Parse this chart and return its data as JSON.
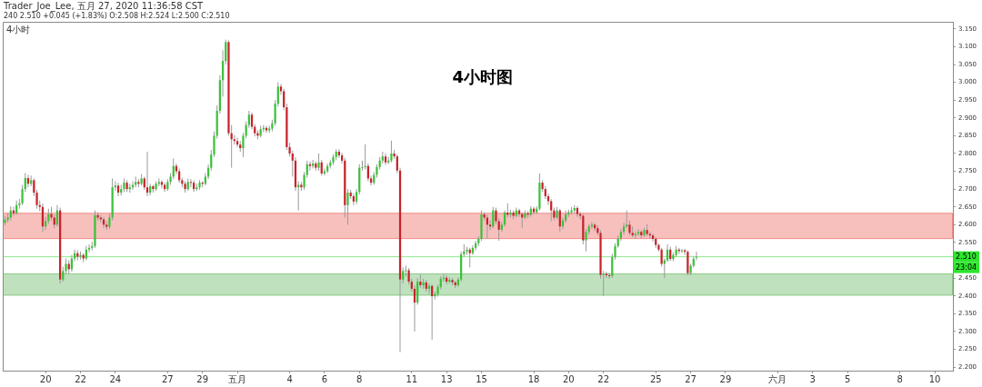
{
  "chart_data": {
    "type": "candlestick",
    "title": "4小时图",
    "annotations": [
      "Trader_Joe_Lee, 五月 27, 2020 11:36:58 CST",
      "240 2.510 +0.045 (+1.83%) O:2.508 H:2.524 L:2.500 C:2.510",
      "4小时",
      "23:04"
    ],
    "xlim": [
      "2020-04-17T13:00",
      "2020-06-11T01:00"
    ],
    "xticks": [
      {
        "value": "2020-04-20",
        "label": "20"
      },
      {
        "value": "2020-04-22",
        "label": "22"
      },
      {
        "value": "2020-04-24",
        "label": "24"
      },
      {
        "value": "2020-04-27",
        "label": "27"
      },
      {
        "value": "2020-04-29",
        "label": "29"
      },
      {
        "value": "2020-05-01",
        "label": "五月"
      },
      {
        "value": "2020-05-04",
        "label": "4"
      },
      {
        "value": "2020-05-06",
        "label": "6"
      },
      {
        "value": "2020-05-08",
        "label": "8"
      },
      {
        "value": "2020-05-11",
        "label": "11"
      },
      {
        "value": "2020-05-13",
        "label": "13"
      },
      {
        "value": "2020-05-15",
        "label": "15"
      },
      {
        "value": "2020-05-18",
        "label": "18"
      },
      {
        "value": "2020-05-20",
        "label": "20"
      },
      {
        "value": "2020-05-22",
        "label": "22"
      },
      {
        "value": "2020-05-25",
        "label": "25"
      },
      {
        "value": "2020-05-27",
        "label": "27"
      },
      {
        "value": "2020-05-29",
        "label": "29"
      },
      {
        "value": "2020-06-01",
        "label": "六月"
      },
      {
        "value": "2020-06-03",
        "label": "3"
      },
      {
        "value": "2020-06-05",
        "label": "5"
      },
      {
        "value": "2020-06-08",
        "label": "8"
      },
      {
        "value": "2020-06-10",
        "label": "10"
      }
    ],
    "ylim": [
      2.19,
      3.17
    ],
    "yticks": [
      {
        "value": 2.2,
        "label": "2.200"
      },
      {
        "value": 2.25,
        "label": "2.250"
      },
      {
        "value": 2.3,
        "label": "2.300"
      },
      {
        "value": 2.35,
        "label": "2.350"
      },
      {
        "value": 2.4,
        "label": "2.400"
      },
      {
        "value": 2.45,
        "label": "2.450"
      },
      {
        "value": 2.55,
        "label": "2.550"
      },
      {
        "value": 2.6,
        "label": "2.600"
      },
      {
        "value": 2.65,
        "label": "2.650"
      },
      {
        "value": 2.7,
        "label": "2.700"
      },
      {
        "value": 2.75,
        "label": "2.750"
      },
      {
        "value": 2.8,
        "label": "2.800"
      },
      {
        "value": 2.85,
        "label": "2.850"
      },
      {
        "value": 2.9,
        "label": "2.900"
      },
      {
        "value": 2.95,
        "label": "2.950"
      },
      {
        "value": 3.0,
        "label": "3.000"
      },
      {
        "value": 3.05,
        "label": "3.050"
      },
      {
        "value": 3.1,
        "label": "3.100"
      },
      {
        "value": 3.15,
        "label": "3.150"
      }
    ],
    "ref_lines": [
      {
        "axis": "y",
        "value": 2.51,
        "label": "2.510",
        "color": "#8de88d"
      }
    ],
    "bands": [
      {
        "axis": "y",
        "from": 2.561,
        "to": 2.632,
        "color": "#f08c86"
      },
      {
        "axis": "y",
        "from": 2.402,
        "to": 2.462,
        "color": "#8cc987"
      }
    ],
    "series": [
      {
        "x": [
          "2020-04-17T16:00",
          "2020-04-17T20:00",
          "2020-04-18T00:00",
          "2020-04-18T04:00",
          "2020-04-18T08:00",
          "2020-04-18T12:00",
          "2020-04-18T16:00",
          "2020-04-18T20:00",
          "2020-04-19T00:00",
          "2020-04-19T04:00",
          "2020-04-19T08:00",
          "2020-04-19T12:00",
          "2020-04-19T16:00",
          "2020-04-19T20:00",
          "2020-04-20T00:00",
          "2020-04-20T04:00",
          "2020-04-20T08:00",
          "2020-04-20T12:00",
          "2020-04-20T16:00",
          "2020-04-20T20:00",
          "2020-04-21T00:00",
          "2020-04-21T04:00",
          "2020-04-21T08:00",
          "2020-04-21T12:00",
          "2020-04-21T16:00",
          "2020-04-21T20:00",
          "2020-04-22T00:00",
          "2020-04-22T04:00",
          "2020-04-22T08:00",
          "2020-04-22T12:00",
          "2020-04-22T16:00",
          "2020-04-22T20:00",
          "2020-04-23T00:00",
          "2020-04-23T04:00",
          "2020-04-23T08:00",
          "2020-04-23T12:00",
          "2020-04-23T16:00",
          "2020-04-23T20:00",
          "2020-04-24T00:00",
          "2020-04-24T04:00",
          "2020-04-24T08:00",
          "2020-04-24T12:00",
          "2020-04-24T16:00",
          "2020-04-24T20:00",
          "2020-04-25T00:00",
          "2020-04-25T04:00",
          "2020-04-25T08:00",
          "2020-04-25T12:00",
          "2020-04-25T16:00",
          "2020-04-25T20:00",
          "2020-04-26T00:00",
          "2020-04-26T04:00",
          "2020-04-26T08:00",
          "2020-04-26T12:00",
          "2020-04-26T16:00",
          "2020-04-26T20:00",
          "2020-04-27T00:00",
          "2020-04-27T04:00",
          "2020-04-27T08:00",
          "2020-04-27T12:00",
          "2020-04-27T16:00",
          "2020-04-27T20:00",
          "2020-04-28T00:00",
          "2020-04-28T04:00",
          "2020-04-28T08:00",
          "2020-04-28T12:00",
          "2020-04-28T16:00",
          "2020-04-28T20:00",
          "2020-04-29T00:00",
          "2020-04-29T04:00",
          "2020-04-29T08:00",
          "2020-04-29T12:00",
          "2020-04-29T16:00",
          "2020-04-29T20:00",
          "2020-04-30T00:00",
          "2020-04-30T04:00",
          "2020-04-30T08:00",
          "2020-04-30T12:00",
          "2020-04-30T16:00",
          "2020-04-30T20:00",
          "2020-05-01T00:00",
          "2020-05-01T04:00",
          "2020-05-01T08:00",
          "2020-05-01T12:00",
          "2020-05-01T16:00",
          "2020-05-01T20:00",
          "2020-05-02T00:00",
          "2020-05-02T04:00",
          "2020-05-02T08:00",
          "2020-05-02T12:00",
          "2020-05-02T16:00",
          "2020-05-02T20:00",
          "2020-05-03T00:00",
          "2020-05-03T04:00",
          "2020-05-03T08:00",
          "2020-05-03T12:00",
          "2020-05-03T16:00",
          "2020-05-03T20:00",
          "2020-05-04T00:00",
          "2020-05-04T04:00",
          "2020-05-04T08:00",
          "2020-05-04T12:00",
          "2020-05-04T16:00",
          "2020-05-04T20:00",
          "2020-05-05T00:00",
          "2020-05-05T04:00",
          "2020-05-05T08:00",
          "2020-05-05T12:00",
          "2020-05-05T16:00",
          "2020-05-05T20:00",
          "2020-05-06T00:00",
          "2020-05-06T04:00",
          "2020-05-06T08:00",
          "2020-05-06T12:00",
          "2020-05-06T16:00",
          "2020-05-06T20:00",
          "2020-05-07T00:00",
          "2020-05-07T04:00",
          "2020-05-07T08:00",
          "2020-05-07T12:00",
          "2020-05-07T16:00",
          "2020-05-07T20:00",
          "2020-05-08T00:00",
          "2020-05-08T04:00",
          "2020-05-08T08:00",
          "2020-05-08T12:00",
          "2020-05-08T16:00",
          "2020-05-08T20:00",
          "2020-05-09T00:00",
          "2020-05-09T04:00",
          "2020-05-09T08:00",
          "2020-05-09T12:00",
          "2020-05-09T16:00",
          "2020-05-09T20:00",
          "2020-05-10T00:00",
          "2020-05-10T04:00",
          "2020-05-10T08:00",
          "2020-05-10T12:00",
          "2020-05-10T16:00",
          "2020-05-10T20:00",
          "2020-05-11T00:00",
          "2020-05-11T04:00",
          "2020-05-11T08:00",
          "2020-05-11T12:00",
          "2020-05-11T16:00",
          "2020-05-11T20:00",
          "2020-05-12T00:00",
          "2020-05-12T04:00",
          "2020-05-12T08:00",
          "2020-05-12T12:00",
          "2020-05-12T16:00",
          "2020-05-12T20:00",
          "2020-05-13T00:00",
          "2020-05-13T04:00",
          "2020-05-13T08:00",
          "2020-05-13T12:00",
          "2020-05-13T16:00",
          "2020-05-13T20:00",
          "2020-05-14T00:00",
          "2020-05-14T04:00",
          "2020-05-14T08:00",
          "2020-05-14T12:00",
          "2020-05-14T16:00",
          "2020-05-14T20:00",
          "2020-05-15T00:00",
          "2020-05-15T04:00",
          "2020-05-15T08:00",
          "2020-05-15T12:00",
          "2020-05-15T16:00",
          "2020-05-15T20:00",
          "2020-05-16T00:00",
          "2020-05-16T04:00",
          "2020-05-16T08:00",
          "2020-05-16T12:00",
          "2020-05-16T16:00",
          "2020-05-16T20:00",
          "2020-05-17T00:00",
          "2020-05-17T04:00",
          "2020-05-17T08:00",
          "2020-05-17T12:00",
          "2020-05-17T16:00",
          "2020-05-17T20:00",
          "2020-05-18T00:00",
          "2020-05-18T04:00",
          "2020-05-18T08:00",
          "2020-05-18T12:00",
          "2020-05-18T16:00",
          "2020-05-18T20:00",
          "2020-05-19T00:00",
          "2020-05-19T04:00",
          "2020-05-19T08:00",
          "2020-05-19T12:00",
          "2020-05-19T16:00",
          "2020-05-19T20:00",
          "2020-05-20T00:00",
          "2020-05-20T04:00",
          "2020-05-20T08:00",
          "2020-05-20T12:00",
          "2020-05-20T16:00",
          "2020-05-20T20:00",
          "2020-05-21T00:00",
          "2020-05-21T04:00",
          "2020-05-21T08:00",
          "2020-05-21T12:00",
          "2020-05-21T16:00",
          "2020-05-21T20:00",
          "2020-05-22T00:00",
          "2020-05-22T04:00",
          "2020-05-22T08:00",
          "2020-05-22T12:00",
          "2020-05-22T16:00",
          "2020-05-22T20:00",
          "2020-05-23T00:00",
          "2020-05-23T04:00",
          "2020-05-23T08:00",
          "2020-05-23T12:00",
          "2020-05-23T16:00",
          "2020-05-23T20:00",
          "2020-05-24T00:00",
          "2020-05-24T04:00",
          "2020-05-24T08:00",
          "2020-05-24T12:00",
          "2020-05-24T16:00",
          "2020-05-24T20:00",
          "2020-05-25T00:00",
          "2020-05-25T04:00",
          "2020-05-25T08:00",
          "2020-05-25T12:00",
          "2020-05-25T16:00",
          "2020-05-25T20:00",
          "2020-05-26T00:00",
          "2020-05-26T04:00",
          "2020-05-26T08:00",
          "2020-05-26T12:00",
          "2020-05-26T16:00",
          "2020-05-26T20:00",
          "2020-05-27T00:00",
          "2020-05-27T04:00",
          "2020-05-27T08:00"
        ],
        "ohlc": [
          [
            2.605,
            2.625,
            2.598,
            2.614
          ],
          [
            2.614,
            2.632,
            2.606,
            2.62
          ],
          [
            2.62,
            2.652,
            2.612,
            2.64
          ],
          [
            2.64,
            2.65,
            2.625,
            2.632
          ],
          [
            2.632,
            2.668,
            2.628,
            2.655
          ],
          [
            2.655,
            2.672,
            2.645,
            2.66
          ],
          [
            2.66,
            2.712,
            2.655,
            2.7
          ],
          [
            2.7,
            2.745,
            2.692,
            2.731
          ],
          [
            2.731,
            2.74,
            2.705,
            2.715
          ],
          [
            2.715,
            2.738,
            2.708,
            2.725
          ],
          [
            2.725,
            2.73,
            2.68,
            2.69
          ],
          [
            2.69,
            2.698,
            2.645,
            2.655
          ],
          [
            2.655,
            2.668,
            2.638,
            2.65
          ],
          [
            2.65,
            2.66,
            2.58,
            2.595
          ],
          [
            2.595,
            2.622,
            2.585,
            2.61
          ],
          [
            2.61,
            2.645,
            2.602,
            2.63
          ],
          [
            2.63,
            2.65,
            2.612,
            2.62
          ],
          [
            2.62,
            2.628,
            2.59,
            2.6
          ],
          [
            2.6,
            2.655,
            2.595,
            2.64
          ],
          [
            2.64,
            2.648,
            2.435,
            2.446
          ],
          [
            2.446,
            2.482,
            2.44,
            2.47
          ],
          [
            2.47,
            2.505,
            2.462,
            2.49
          ],
          [
            2.49,
            2.5,
            2.462,
            2.475
          ],
          [
            2.475,
            2.515,
            2.468,
            2.505
          ],
          [
            2.505,
            2.53,
            2.498,
            2.52
          ],
          [
            2.52,
            2.528,
            2.5,
            2.51
          ],
          [
            2.51,
            2.525,
            2.502,
            2.515
          ],
          [
            2.515,
            2.52,
            2.495,
            2.505
          ],
          [
            2.505,
            2.54,
            2.5,
            2.53
          ],
          [
            2.53,
            2.545,
            2.522,
            2.535
          ],
          [
            2.535,
            2.552,
            2.528,
            2.54
          ],
          [
            2.54,
            2.64,
            2.535,
            2.627
          ],
          [
            2.627,
            2.635,
            2.612,
            2.62
          ],
          [
            2.62,
            2.628,
            2.605,
            2.615
          ],
          [
            2.615,
            2.622,
            2.59,
            2.6
          ],
          [
            2.6,
            2.61,
            2.585,
            2.594
          ],
          [
            2.594,
            2.63,
            2.588,
            2.62
          ],
          [
            2.62,
            2.73,
            2.612,
            2.705
          ],
          [
            2.705,
            2.722,
            2.695,
            2.71
          ],
          [
            2.71,
            2.718,
            2.68,
            2.69
          ],
          [
            2.69,
            2.712,
            2.682,
            2.7
          ],
          [
            2.7,
            2.73,
            2.692,
            2.718
          ],
          [
            2.718,
            2.725,
            2.692,
            2.7
          ],
          [
            2.7,
            2.715,
            2.69,
            2.705
          ],
          [
            2.705,
            2.722,
            2.698,
            2.712
          ],
          [
            2.712,
            2.735,
            2.705,
            2.72
          ],
          [
            2.72,
            2.728,
            2.705,
            2.715
          ],
          [
            2.715,
            2.742,
            2.71,
            2.73
          ],
          [
            2.73,
            2.735,
            2.698,
            2.705
          ],
          [
            2.705,
            2.805,
            2.68,
            2.69
          ],
          [
            2.69,
            2.715,
            2.682,
            2.708
          ],
          [
            2.708,
            2.712,
            2.69,
            2.7
          ],
          [
            2.7,
            2.722,
            2.695,
            2.715
          ],
          [
            2.715,
            2.73,
            2.708,
            2.72
          ],
          [
            2.72,
            2.725,
            2.702,
            2.712
          ],
          [
            2.712,
            2.718,
            2.692,
            2.7
          ],
          [
            2.7,
            2.728,
            2.695,
            2.72
          ],
          [
            2.72,
            2.745,
            2.712,
            2.735
          ],
          [
            2.735,
            2.786,
            2.728,
            2.765
          ],
          [
            2.765,
            2.772,
            2.742,
            2.75
          ],
          [
            2.75,
            2.758,
            2.718,
            2.725
          ],
          [
            2.725,
            2.732,
            2.705,
            2.715
          ],
          [
            2.715,
            2.722,
            2.69,
            2.7
          ],
          [
            2.7,
            2.73,
            2.695,
            2.72
          ],
          [
            2.72,
            2.728,
            2.705,
            2.718
          ],
          [
            2.718,
            2.725,
            2.692,
            2.7
          ],
          [
            2.7,
            2.715,
            2.695,
            2.705
          ],
          [
            2.705,
            2.725,
            2.698,
            2.718
          ],
          [
            2.718,
            2.722,
            2.705,
            2.715
          ],
          [
            2.715,
            2.745,
            2.71,
            2.735
          ],
          [
            2.735,
            2.77,
            2.728,
            2.76
          ],
          [
            2.76,
            2.81,
            2.752,
            2.797
          ],
          [
            2.797,
            2.862,
            2.79,
            2.85
          ],
          [
            2.85,
            2.935,
            2.842,
            2.92
          ],
          [
            2.92,
            3.02,
            2.912,
            3.006
          ],
          [
            3.006,
            3.09,
            2.96,
            3.06
          ],
          [
            3.06,
            3.12,
            3.05,
            3.113
          ],
          [
            3.113,
            3.118,
            2.85,
            2.857
          ],
          [
            2.857,
            2.88,
            2.76,
            2.84
          ],
          [
            2.84,
            2.852,
            2.825,
            2.835
          ],
          [
            2.835,
            2.845,
            2.818,
            2.825
          ],
          [
            2.825,
            2.835,
            2.805,
            2.815
          ],
          [
            2.815,
            2.858,
            2.79,
            2.85
          ],
          [
            2.85,
            2.89,
            2.842,
            2.88
          ],
          [
            2.88,
            2.92,
            2.872,
            2.909
          ],
          [
            2.909,
            2.915,
            2.868,
            2.875
          ],
          [
            2.875,
            2.882,
            2.848,
            2.857
          ],
          [
            2.857,
            2.865,
            2.84,
            2.85
          ],
          [
            2.85,
            2.878,
            2.845,
            2.868
          ],
          [
            2.868,
            2.88,
            2.86,
            2.872
          ],
          [
            2.872,
            2.878,
            2.858,
            2.865
          ],
          [
            2.865,
            2.878,
            2.858,
            2.87
          ],
          [
            2.87,
            2.895,
            2.862,
            2.885
          ],
          [
            2.885,
            2.95,
            2.878,
            2.94
          ],
          [
            2.94,
            3.0,
            2.932,
            2.988
          ],
          [
            2.988,
            2.995,
            2.965,
            2.975
          ],
          [
            2.975,
            2.982,
            2.922,
            2.93
          ],
          [
            2.93,
            2.94,
            2.81,
            2.818
          ],
          [
            2.818,
            2.83,
            2.792,
            2.8
          ],
          [
            2.8,
            2.808,
            2.735,
            2.78
          ],
          [
            2.78,
            2.79,
            2.695,
            2.705
          ],
          [
            2.705,
            2.722,
            2.64,
            2.712
          ],
          [
            2.712,
            2.72,
            2.695,
            2.705
          ],
          [
            2.705,
            2.748,
            2.698,
            2.74
          ],
          [
            2.74,
            2.78,
            2.732,
            2.77
          ],
          [
            2.77,
            2.778,
            2.752,
            2.765
          ],
          [
            2.765,
            2.782,
            2.758,
            2.772
          ],
          [
            2.772,
            2.778,
            2.752,
            2.76
          ],
          [
            2.76,
            2.8,
            2.752,
            2.775
          ],
          [
            2.775,
            2.782,
            2.738,
            2.744
          ],
          [
            2.744,
            2.758,
            2.738,
            2.75
          ],
          [
            2.75,
            2.772,
            2.745,
            2.765
          ],
          [
            2.765,
            2.782,
            2.758,
            2.775
          ],
          [
            2.775,
            2.798,
            2.768,
            2.79
          ],
          [
            2.79,
            2.812,
            2.782,
            2.805
          ],
          [
            2.805,
            2.812,
            2.788,
            2.795
          ],
          [
            2.795,
            2.802,
            2.772,
            2.78
          ],
          [
            2.78,
            2.788,
            2.62,
            2.655
          ],
          [
            2.655,
            2.7,
            2.6,
            2.69
          ],
          [
            2.69,
            2.698,
            2.672,
            2.68
          ],
          [
            2.68,
            2.688,
            2.655,
            2.665
          ],
          [
            2.665,
            2.7,
            2.658,
            2.692
          ],
          [
            2.692,
            2.77,
            2.685,
            2.76
          ],
          [
            2.76,
            2.78,
            2.752,
            2.762
          ],
          [
            2.762,
            2.826,
            2.755,
            2.765
          ],
          [
            2.765,
            2.772,
            2.722,
            2.73
          ],
          [
            2.73,
            2.738,
            2.71,
            2.718
          ],
          [
            2.718,
            2.748,
            2.712,
            2.74
          ],
          [
            2.74,
            2.77,
            2.732,
            2.762
          ],
          [
            2.762,
            2.79,
            2.755,
            2.78
          ],
          [
            2.78,
            2.805,
            2.772,
            2.792
          ],
          [
            2.792,
            2.8,
            2.768,
            2.775
          ],
          [
            2.775,
            2.79,
            2.77,
            2.78
          ],
          [
            2.78,
            2.836,
            2.775,
            2.8
          ],
          [
            2.8,
            2.81,
            2.785,
            2.792
          ],
          [
            2.792,
            2.798,
            2.745,
            2.752
          ],
          [
            2.752,
            2.76,
            2.242,
            2.446
          ],
          [
            2.446,
            2.48,
            2.435,
            2.47
          ],
          [
            2.47,
            2.485,
            2.455,
            2.472
          ],
          [
            2.472,
            2.478,
            2.432,
            2.44
          ],
          [
            2.44,
            2.448,
            2.412,
            2.42
          ],
          [
            2.42,
            2.43,
            2.3,
            2.381
          ],
          [
            2.381,
            2.45,
            2.375,
            2.44
          ],
          [
            2.44,
            2.46,
            2.422,
            2.43
          ],
          [
            2.43,
            2.448,
            2.42,
            2.438
          ],
          [
            2.438,
            2.445,
            2.412,
            2.42
          ],
          [
            2.42,
            2.435,
            2.405,
            2.428
          ],
          [
            2.428,
            2.432,
            2.277,
            2.399
          ],
          [
            2.399,
            2.412,
            2.39,
            2.405
          ],
          [
            2.405,
            2.432,
            2.398,
            2.425
          ],
          [
            2.425,
            2.455,
            2.418,
            2.448
          ],
          [
            2.448,
            2.462,
            2.44,
            2.451
          ],
          [
            2.451,
            2.458,
            2.432,
            2.44
          ],
          [
            2.44,
            2.452,
            2.435,
            2.445
          ],
          [
            2.445,
            2.45,
            2.43,
            2.438
          ],
          [
            2.438,
            2.442,
            2.422,
            2.43
          ],
          [
            2.43,
            2.452,
            2.425,
            2.446
          ],
          [
            2.446,
            2.525,
            2.44,
            2.517
          ],
          [
            2.517,
            2.545,
            2.51,
            2.525
          ],
          [
            2.525,
            2.538,
            2.515,
            2.53
          ],
          [
            2.53,
            2.535,
            2.48,
            2.52
          ],
          [
            2.52,
            2.542,
            2.515,
            2.535
          ],
          [
            2.535,
            2.555,
            2.528,
            2.548
          ],
          [
            2.548,
            2.568,
            2.54,
            2.56
          ],
          [
            2.56,
            2.64,
            2.555,
            2.629
          ],
          [
            2.629,
            2.635,
            2.612,
            2.62
          ],
          [
            2.62,
            2.628,
            2.56,
            2.6
          ],
          [
            2.6,
            2.612,
            2.585,
            2.595
          ],
          [
            2.595,
            2.65,
            2.59,
            2.64
          ],
          [
            2.64,
            2.648,
            2.602,
            2.61
          ],
          [
            2.61,
            2.618,
            2.555,
            2.586
          ],
          [
            2.586,
            2.608,
            2.58,
            2.6
          ],
          [
            2.6,
            2.64,
            2.595,
            2.634
          ],
          [
            2.634,
            2.66,
            2.62,
            2.628
          ],
          [
            2.628,
            2.642,
            2.62,
            2.634
          ],
          [
            2.634,
            2.64,
            2.615,
            2.625
          ],
          [
            2.625,
            2.648,
            2.62,
            2.64
          ],
          [
            2.64,
            2.645,
            2.622,
            2.63
          ],
          [
            2.63,
            2.635,
            2.59,
            2.62
          ],
          [
            2.62,
            2.64,
            2.615,
            2.632
          ],
          [
            2.632,
            2.638,
            2.618,
            2.628
          ],
          [
            2.628,
            2.652,
            2.622,
            2.645
          ],
          [
            2.645,
            2.65,
            2.628,
            2.635
          ],
          [
            2.635,
            2.652,
            2.63,
            2.645
          ],
          [
            2.645,
            2.744,
            2.64,
            2.718
          ],
          [
            2.718,
            2.725,
            2.692,
            2.7
          ],
          [
            2.7,
            2.708,
            2.672,
            2.68
          ],
          [
            2.68,
            2.688,
            2.655,
            2.666
          ],
          [
            2.666,
            2.672,
            2.61,
            2.64
          ],
          [
            2.64,
            2.648,
            2.612,
            2.62
          ],
          [
            2.62,
            2.65,
            2.615,
            2.64
          ],
          [
            2.64,
            2.645,
            2.58,
            2.595
          ],
          [
            2.595,
            2.62,
            2.588,
            2.612
          ],
          [
            2.612,
            2.64,
            2.605,
            2.629
          ],
          [
            2.629,
            2.642,
            2.622,
            2.635
          ],
          [
            2.635,
            2.65,
            2.628,
            2.64
          ],
          [
            2.64,
            2.655,
            2.632,
            2.647
          ],
          [
            2.647,
            2.652,
            2.622,
            2.63
          ],
          [
            2.63,
            2.636,
            2.615,
            2.625
          ],
          [
            2.625,
            2.63,
            2.545,
            2.556
          ],
          [
            2.556,
            2.588,
            2.525,
            2.58
          ],
          [
            2.58,
            2.602,
            2.572,
            2.595
          ],
          [
            2.595,
            2.608,
            2.588,
            2.6
          ],
          [
            2.6,
            2.605,
            2.582,
            2.59
          ],
          [
            2.59,
            2.598,
            2.57,
            2.577
          ],
          [
            2.577,
            2.585,
            2.448,
            2.459
          ],
          [
            2.459,
            2.47,
            2.4,
            2.462
          ],
          [
            2.462,
            2.468,
            2.45,
            2.458
          ],
          [
            2.458,
            2.465,
            2.448,
            2.456
          ],
          [
            2.456,
            2.518,
            2.45,
            2.509
          ],
          [
            2.509,
            2.548,
            2.502,
            2.54
          ],
          [
            2.54,
            2.57,
            2.535,
            2.561
          ],
          [
            2.561,
            2.588,
            2.555,
            2.58
          ],
          [
            2.58,
            2.605,
            2.572,
            2.595
          ],
          [
            2.595,
            2.64,
            2.59,
            2.6
          ],
          [
            2.6,
            2.612,
            2.57,
            2.577
          ],
          [
            2.577,
            2.595,
            2.565,
            2.57
          ],
          [
            2.57,
            2.582,
            2.56,
            2.574
          ],
          [
            2.574,
            2.588,
            2.568,
            2.58
          ],
          [
            2.58,
            2.585,
            2.562,
            2.57
          ],
          [
            2.57,
            2.592,
            2.565,
            2.585
          ],
          [
            2.585,
            2.602,
            2.568,
            2.574
          ],
          [
            2.574,
            2.58,
            2.562,
            2.57
          ],
          [
            2.57,
            2.575,
            2.552,
            2.56
          ],
          [
            2.56,
            2.565,
            2.535,
            2.543
          ],
          [
            2.543,
            2.548,
            2.525,
            2.53
          ],
          [
            2.53,
            2.535,
            2.482,
            2.49
          ],
          [
            2.49,
            2.505,
            2.45,
            2.5
          ],
          [
            2.5,
            2.545,
            2.495,
            2.53
          ],
          [
            2.53,
            2.538,
            2.498,
            2.504
          ],
          [
            2.504,
            2.522,
            2.498,
            2.515
          ],
          [
            2.515,
            2.54,
            2.51,
            2.53
          ],
          [
            2.53,
            2.535,
            2.518,
            2.526
          ],
          [
            2.526,
            2.532,
            2.52,
            2.528
          ],
          [
            2.528,
            2.532,
            2.515,
            2.524
          ],
          [
            2.524,
            2.528,
            2.458,
            2.464
          ],
          [
            2.464,
            2.49,
            2.458,
            2.485
          ],
          [
            2.485,
            2.51,
            2.48,
            2.504
          ],
          [
            2.508,
            2.524,
            2.5,
            2.51
          ]
        ],
        "colors": [
          "#3cc13b",
          "#3cc13b",
          "#3cc13b",
          "#c8222a",
          "#3cc13b",
          "#3cc13b",
          "#3cc13b",
          "#3cc13b",
          "#c8222a",
          "#3cc13b",
          "#c8222a",
          "#c8222a",
          "#c8222a",
          "#c8222a",
          "#3cc13b",
          "#3cc13b",
          "#c8222a",
          "#c8222a",
          "#3cc13b",
          "#c8222a",
          "#3cc13b",
          "#3cc13b",
          "#c8222a",
          "#3cc13b",
          "#3cc13b",
          "#c8222a",
          "#3cc13b",
          "#c8222a",
          "#3cc13b",
          "#3cc13b",
          "#3cc13b",
          "#3cc13b",
          "#c8222a",
          "#c8222a",
          "#c8222a",
          "#c8222a",
          "#3cc13b",
          "#3cc13b",
          "#3cc13b",
          "#c8222a",
          "#3cc13b",
          "#3cc13b",
          "#c8222a",
          "#3cc13b",
          "#3cc13b",
          "#3cc13b",
          "#c8222a",
          "#3cc13b",
          "#c8222a",
          "#c8222a",
          "#3cc13b",
          "#c8222a",
          "#3cc13b",
          "#3cc13b",
          "#c8222a",
          "#c8222a",
          "#3cc13b",
          "#3cc13b",
          "#3cc13b",
          "#c8222a",
          "#c8222a",
          "#c8222a",
          "#c8222a",
          "#3cc13b",
          "#c8222a",
          "#c8222a",
          "#3cc13b",
          "#3cc13b",
          "#c8222a",
          "#3cc13b",
          "#3cc13b",
          "#3cc13b",
          "#3cc13b",
          "#3cc13b",
          "#3cc13b",
          "#3cc13b",
          "#3cc13b",
          "#c8222a",
          "#c8222a",
          "#c8222a",
          "#c8222a",
          "#c8222a",
          "#3cc13b",
          "#3cc13b",
          "#3cc13b",
          "#c8222a",
          "#c8222a",
          "#c8222a",
          "#3cc13b",
          "#3cc13b",
          "#c8222a",
          "#3cc13b",
          "#3cc13b",
          "#3cc13b",
          "#3cc13b",
          "#c8222a",
          "#c8222a",
          "#c8222a",
          "#c8222a",
          "#c8222a",
          "#c8222a",
          "#3cc13b",
          "#c8222a",
          "#3cc13b",
          "#3cc13b",
          "#c8222a",
          "#3cc13b",
          "#c8222a",
          "#3cc13b",
          "#c8222a",
          "#3cc13b",
          "#3cc13b",
          "#3cc13b",
          "#3cc13b",
          "#3cc13b",
          "#c8222a",
          "#c8222a",
          "#c8222a",
          "#3cc13b",
          "#c8222a",
          "#c8222a",
          "#3cc13b",
          "#3cc13b",
          "#3cc13b",
          "#3cc13b",
          "#c8222a",
          "#c8222a",
          "#3cc13b",
          "#3cc13b",
          "#3cc13b",
          "#3cc13b",
          "#c8222a",
          "#3cc13b",
          "#3cc13b",
          "#c8222a",
          "#c8222a",
          "#c8222a",
          "#3cc13b",
          "#3cc13b",
          "#c8222a",
          "#c8222a",
          "#c8222a",
          "#3cc13b",
          "#c8222a",
          "#3cc13b",
          "#c8222a",
          "#3cc13b",
          "#c8222a",
          "#3cc13b",
          "#3cc13b",
          "#3cc13b",
          "#3cc13b",
          "#c8222a",
          "#3cc13b",
          "#c8222a",
          "#c8222a",
          "#3cc13b",
          "#3cc13b",
          "#3cc13b",
          "#3cc13b",
          "#c8222a",
          "#3cc13b",
          "#3cc13b",
          "#3cc13b",
          "#3cc13b",
          "#c8222a",
          "#c8222a",
          "#c8222a",
          "#3cc13b",
          "#c8222a",
          "#c8222a",
          "#3cc13b",
          "#3cc13b",
          "#c8222a",
          "#3cc13b",
          "#c8222a",
          "#3cc13b",
          "#c8222a",
          "#c8222a",
          "#3cc13b",
          "#c8222a",
          "#3cc13b",
          "#c8222a",
          "#3cc13b",
          "#3cc13b",
          "#c8222a",
          "#c8222a",
          "#c8222a",
          "#c8222a",
          "#c8222a",
          "#3cc13b",
          "#c8222a",
          "#3cc13b",
          "#3cc13b",
          "#3cc13b",
          "#3cc13b",
          "#3cc13b",
          "#c8222a",
          "#c8222a",
          "#c8222a",
          "#3cc13b",
          "#3cc13b",
          "#3cc13b",
          "#c8222a",
          "#c8222a",
          "#c8222a",
          "#3cc13b",
          "#c8222a",
          "#c8222a",
          "#3cc13b",
          "#3cc13b",
          "#3cc13b",
          "#3cc13b",
          "#3cc13b",
          "#3cc13b",
          "#c8222a",
          "#c8222a",
          "#3cc13b",
          "#3cc13b",
          "#c8222a",
          "#3cc13b",
          "#c8222a",
          "#c8222a",
          "#c8222a",
          "#c8222a",
          "#c8222a",
          "#c8222a",
          "#3cc13b",
          "#3cc13b",
          "#c8222a",
          "#3cc13b",
          "#3cc13b",
          "#c8222a",
          "#3cc13b",
          "#c8222a",
          "#c8222a",
          "#3cc13b",
          "#3cc13b",
          "#3cc13b"
        ]
      }
    ]
  }
}
